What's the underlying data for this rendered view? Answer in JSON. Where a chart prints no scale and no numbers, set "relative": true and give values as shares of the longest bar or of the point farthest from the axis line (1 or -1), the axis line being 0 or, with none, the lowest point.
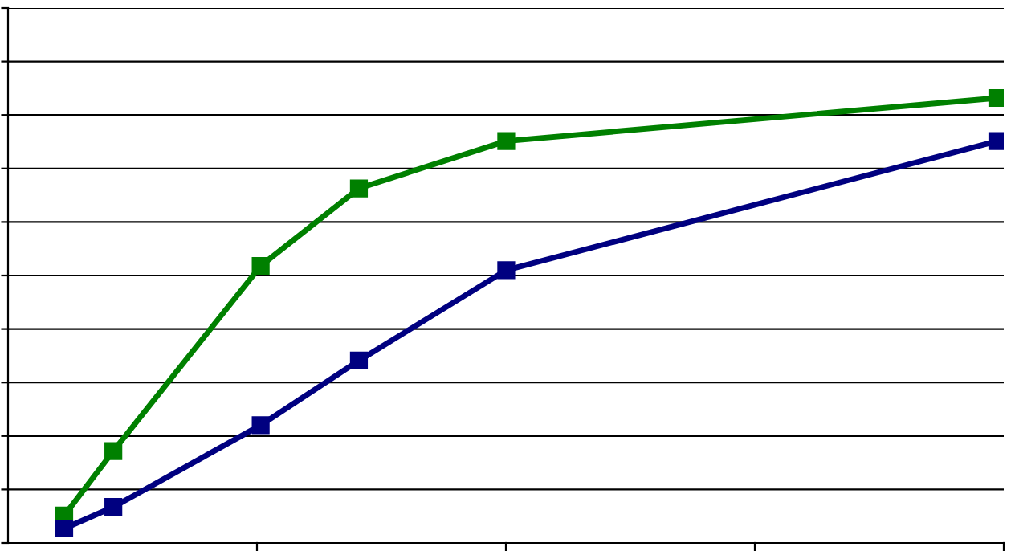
{
  "chart_data": {
    "type": "line",
    "relative": true,
    "grid": "y",
    "line_style": "solid",
    "marker": "square",
    "categories": [
      null,
      null,
      null,
      null,
      null,
      null,
      null,
      null,
      null,
      null,
      null,
      null,
      null,
      null,
      null,
      null,
      null,
      null,
      null,
      null
    ],
    "series": [
      {
        "color": "#008000",
        "values": [
          0.03,
          0.18,
          null,
          null,
          0.61,
          null,
          0.79,
          null,
          null,
          0.9,
          null,
          null,
          null,
          null,
          null,
          null,
          null,
          null,
          null,
          1.0
        ]
      },
      {
        "color": "#000080",
        "values": [
          0.0,
          0.05,
          null,
          null,
          0.24,
          null,
          0.39,
          null,
          null,
          0.6,
          null,
          null,
          null,
          null,
          null,
          null,
          null,
          null,
          null,
          0.9
        ]
      }
    ]
  }
}
